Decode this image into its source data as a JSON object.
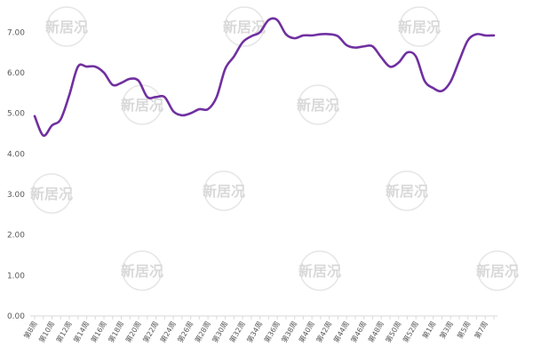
{
  "chart_data": {
    "type": "line",
    "title": "",
    "xlabel": "",
    "ylabel": "",
    "ylim": [
      0,
      7
    ],
    "y_ticks": [
      "0.00",
      "1.00",
      "2.00",
      "3.00",
      "4.00",
      "5.00",
      "6.00",
      "7.00"
    ],
    "grid": false,
    "legend": "none",
    "line_color": "#7030a0",
    "x": [
      "第8周",
      "第9周",
      "第10周",
      "第11周",
      "第12周",
      "第13周",
      "第14周",
      "第15周",
      "第16周",
      "第17周",
      "第18周",
      "第19周",
      "第20周",
      "第21周",
      "第22周",
      "第23周",
      "第24周",
      "第25周",
      "第26周",
      "第27周",
      "第28周",
      "第29周",
      "第30周",
      "第31周",
      "第32周",
      "第33周",
      "第34周",
      "第35周",
      "第36周",
      "第37周",
      "第38周",
      "第39周",
      "第40周",
      "第41周",
      "第42周",
      "第43周",
      "第44周",
      "第45周",
      "第46周",
      "第47周",
      "第48周",
      "第49周",
      "第50周",
      "第51周",
      "第52周",
      "第53周",
      "第1周",
      "第2周",
      "第3周",
      "第4周",
      "第5周",
      "第6周",
      "第7周",
      "第8周"
    ],
    "x_tick_labels": [
      "第8周",
      "第10周",
      "第12周",
      "第14周",
      "第16周",
      "第18周",
      "第20周",
      "第22周",
      "第24周",
      "第26周",
      "第28周",
      "第30周",
      "第32周",
      "第34周",
      "第36周",
      "第38周",
      "第40周",
      "第42周",
      "第44周",
      "第46周",
      "第48周",
      "第50周",
      "第52周",
      "第1周",
      "第3周",
      "第5周",
      "第7周"
    ],
    "series": [
      {
        "values": [
          4.93,
          4.45,
          4.7,
          4.85,
          5.45,
          6.15,
          6.15,
          6.15,
          6.0,
          5.7,
          5.75,
          5.85,
          5.8,
          5.4,
          5.4,
          5.4,
          5.05,
          4.95,
          5.0,
          5.1,
          5.1,
          5.4,
          6.1,
          6.4,
          6.75,
          6.9,
          7.0,
          7.3,
          7.3,
          6.95,
          6.85,
          6.92,
          6.92,
          6.95,
          6.95,
          6.9,
          6.68,
          6.62,
          6.65,
          6.65,
          6.38,
          6.15,
          6.25,
          6.5,
          6.4,
          5.8,
          5.62,
          5.55,
          5.78,
          6.3,
          6.8,
          6.95,
          6.92,
          6.92
        ]
      }
    ]
  },
  "watermarks": [
    "新居况",
    "新居况",
    "新居况",
    "新居况",
    "新居况",
    "新居况",
    "新居况",
    "新居况",
    "新居况",
    "新居况",
    "新居况",
    "新居况",
    "新居况"
  ]
}
